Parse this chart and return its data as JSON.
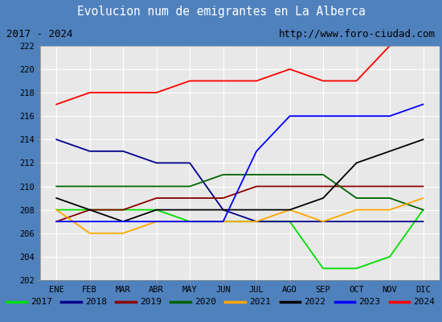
{
  "title": "Evolucion num de emigrantes en La Alberca",
  "subtitle_left": "2017 - 2024",
  "subtitle_right": "http://www.foro-ciudad.com",
  "months": [
    "ENE",
    "FEB",
    "MAR",
    "ABR",
    "MAY",
    "JUN",
    "JUL",
    "AGO",
    "SEP",
    "OCT",
    "NOV",
    "DIC"
  ],
  "ylim": [
    202,
    222
  ],
  "yticks": [
    202,
    204,
    206,
    208,
    210,
    212,
    214,
    216,
    218,
    220,
    222
  ],
  "series": {
    "2017": {
      "color": "#00dd00",
      "data": [
        208,
        208,
        208,
        208,
        207,
        207,
        207,
        207,
        203,
        203,
        204,
        208
      ]
    },
    "2018": {
      "color": "#00008b",
      "data": [
        214,
        213,
        213,
        212,
        212,
        208,
        207,
        207,
        207,
        207,
        207,
        207
      ]
    },
    "2019": {
      "color": "#8b0000",
      "data": [
        207,
        208,
        208,
        209,
        209,
        209,
        210,
        210,
        210,
        210,
        210,
        210
      ]
    },
    "2020": {
      "color": "#006400",
      "data": [
        210,
        210,
        210,
        210,
        210,
        211,
        211,
        211,
        211,
        209,
        209,
        208
      ]
    },
    "2021": {
      "color": "#ffa500",
      "data": [
        208,
        206,
        206,
        207,
        207,
        207,
        207,
        208,
        207,
        208,
        208,
        209
      ]
    },
    "2022": {
      "color": "#000000",
      "data": [
        209,
        208,
        207,
        208,
        208,
        208,
        208,
        208,
        209,
        212,
        213,
        214
      ]
    },
    "2023": {
      "color": "#0000ff",
      "data": [
        207,
        207,
        207,
        207,
        207,
        207,
        213,
        216,
        216,
        216,
        216,
        217
      ]
    },
    "2024": {
      "color": "#ff0000",
      "data": [
        217,
        218,
        218,
        218,
        219,
        219,
        219,
        220,
        219,
        219,
        222,
        null
      ]
    }
  },
  "title_bg_color": "#4f81bd",
  "title_text_color": "#ffffff",
  "subtitle_bg_color": "#d9d9d9",
  "plot_bg_color": "#e8e8e8",
  "grid_color": "#ffffff",
  "legend_bg_color": "#f2f2f2",
  "border_color": "#4f81bd",
  "outer_bg": "#4f81bd"
}
